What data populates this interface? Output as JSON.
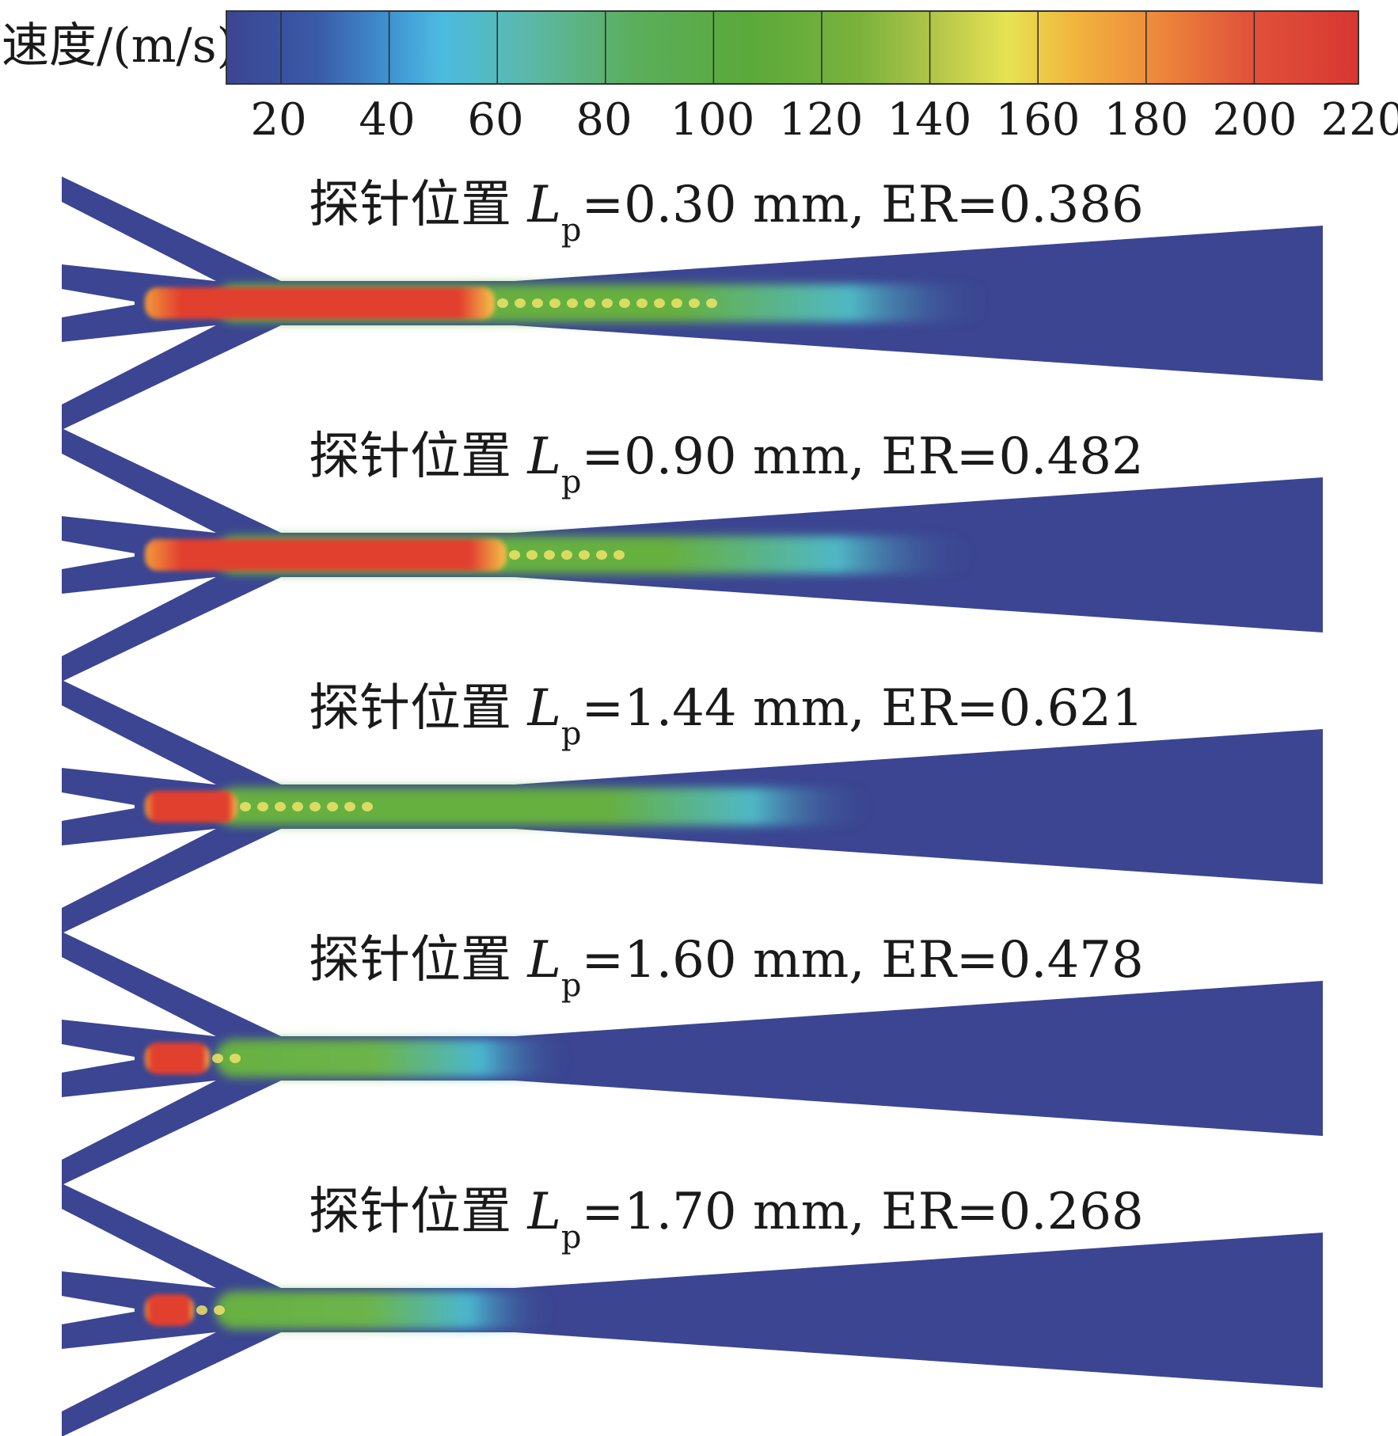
{
  "colorbar": {
    "title": "速度/(m/s)",
    "ticks": [
      "20",
      "40",
      "60",
      "80",
      "100",
      "120",
      "140",
      "160",
      "180",
      "200",
      "220"
    ],
    "colors": [
      "#3b4591",
      "#3a6fc0",
      "#44b6dc",
      "#5fb9a0",
      "#5aae58",
      "#5fab3c",
      "#86b83c",
      "#e3e252",
      "#f3a43c",
      "#e5593a",
      "#d93a32"
    ]
  },
  "panels": [
    {
      "prefix": "探针位置 ",
      "symbol": "L",
      "subscript": "p",
      "value": "=0.30 mm, ER=0.386"
    },
    {
      "prefix": "探针位置 ",
      "symbol": "L",
      "subscript": "p",
      "value": "=0.90 mm, ER=0.482"
    },
    {
      "prefix": "探针位置 ",
      "symbol": "L",
      "subscript": "p",
      "value": "=1.44 mm, ER=0.621"
    },
    {
      "prefix": "探针位置 ",
      "symbol": "L",
      "subscript": "p",
      "value": "=1.60 mm, ER=0.478"
    },
    {
      "prefix": "探针位置 ",
      "symbol": "L",
      "subscript": "p",
      "value": "=1.70 mm, ER=0.268"
    }
  ]
}
